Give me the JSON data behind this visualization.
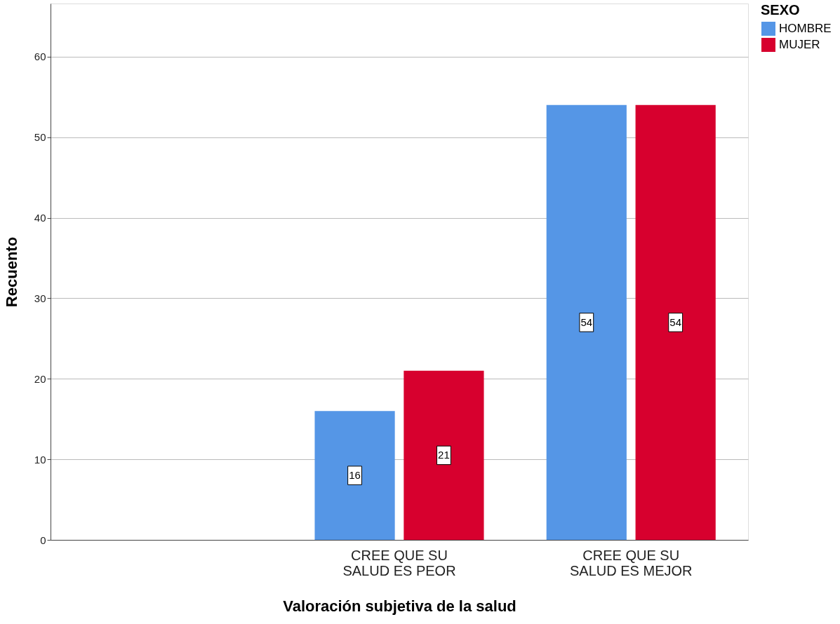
{
  "chart_data": {
    "type": "bar",
    "xlabel": "Valoración subjetiva de la salud",
    "ylabel": "Recuento",
    "legend_title": "SEXO",
    "categories": [
      null,
      "CREE QUE SU SALUD ES PEOR",
      "CREE QUE SU SALUD ES MEJOR"
    ],
    "series": [
      {
        "name": "HOMBRE",
        "color": "#5596e6",
        "values": [
          null,
          16,
          54
        ]
      },
      {
        "name": "MUJER",
        "color": "#d7002e",
        "values": [
          null,
          21,
          54
        ]
      }
    ],
    "ylim": [
      0,
      66.6
    ],
    "yticks": [
      0,
      10,
      20,
      30,
      40,
      50,
      60
    ],
    "grid": "y",
    "legend": "top right",
    "data_labels": true
  }
}
